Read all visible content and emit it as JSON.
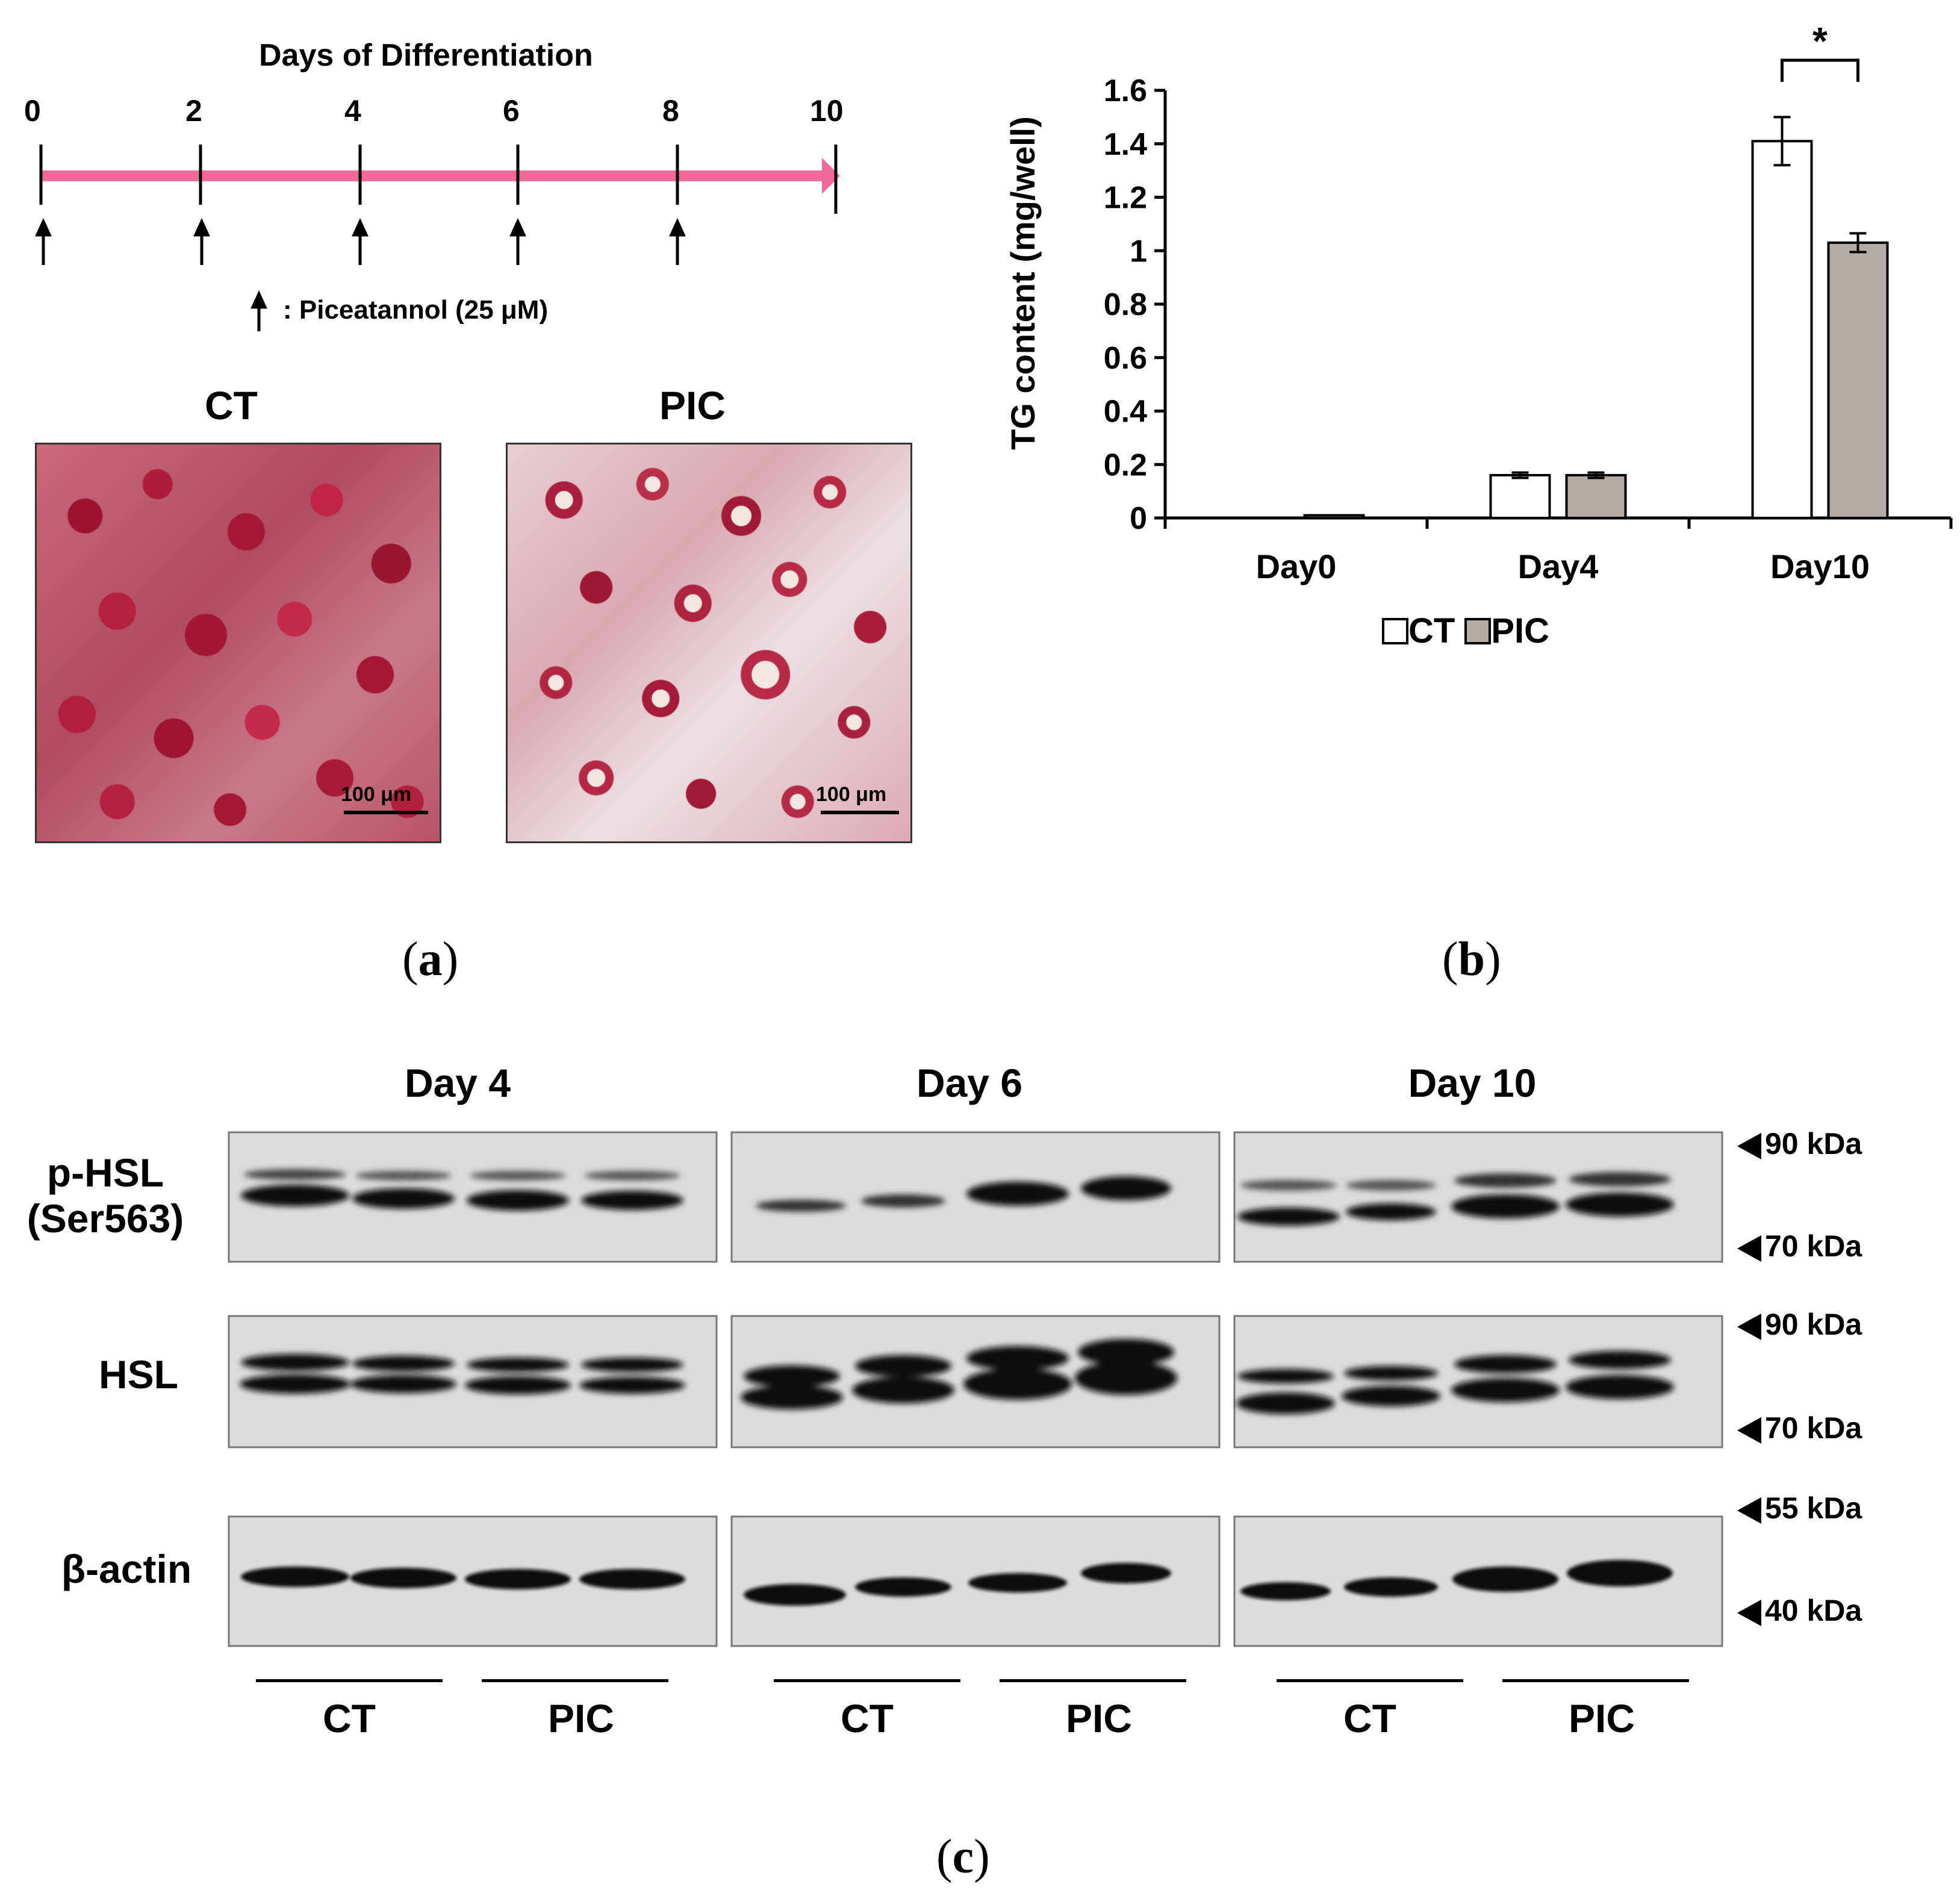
{
  "panel_a": {
    "timeline_title": "Days of Differentiation",
    "ticks": [
      "0",
      "2",
      "4",
      "6",
      "8",
      "10"
    ],
    "legend_text": ": Piceatannol (25 μM)",
    "image_titles": [
      "CT",
      "PIC"
    ],
    "scale_bars": [
      "100 μm",
      "100 μm"
    ],
    "label_open": "(",
    "label_letter": "a",
    "label_close": ")"
  },
  "panel_b": {
    "label_open": "(",
    "label_letter": "b",
    "label_close": ")",
    "significance": "*",
    "legend": [
      "CT",
      "PIC"
    ]
  },
  "chart_data": {
    "type": "bar",
    "ylabel": "TG content (mg/well)",
    "xlabel": "",
    "categories": [
      "Day0",
      "Day4",
      "Day10"
    ],
    "ylim": [
      0,
      1.6
    ],
    "yticks": [
      "0",
      "0.2",
      "0.4",
      "0.6",
      "0.8",
      "1",
      "1.2",
      "1.4",
      "1.6"
    ],
    "series": [
      {
        "name": "CT",
        "values": [
          0.0,
          0.16,
          1.41
        ],
        "errors": [
          0.0,
          0.01,
          0.09
        ],
        "color": "#ffffff"
      },
      {
        "name": "PIC",
        "values": [
          0.01,
          0.16,
          1.03
        ],
        "errors": [
          0.0,
          0.01,
          0.035
        ],
        "color": "#b3aca6"
      }
    ],
    "grid": false,
    "legend_position": "bottom"
  },
  "panel_c": {
    "day_titles": [
      "Day 4",
      "Day 6",
      "Day 10"
    ],
    "row_labels": [
      "p-HSL\n(Ser563)",
      "HSL",
      "β-actin"
    ],
    "markers": [
      "90 kDa",
      "70 kDa",
      "90 kDa",
      "70 kDa",
      "55 kDa",
      "40 kDa"
    ],
    "group_labels": [
      "CT",
      "PIC",
      "CT",
      "PIC",
      "CT",
      "PIC"
    ],
    "label_open": "(",
    "label_letter": "c",
    "label_close": ")"
  },
  "colors": {
    "timeline_arrow": "#f06a9a",
    "pic_bar": "#b3aca6",
    "blot_bg": "#dcdcdc"
  }
}
